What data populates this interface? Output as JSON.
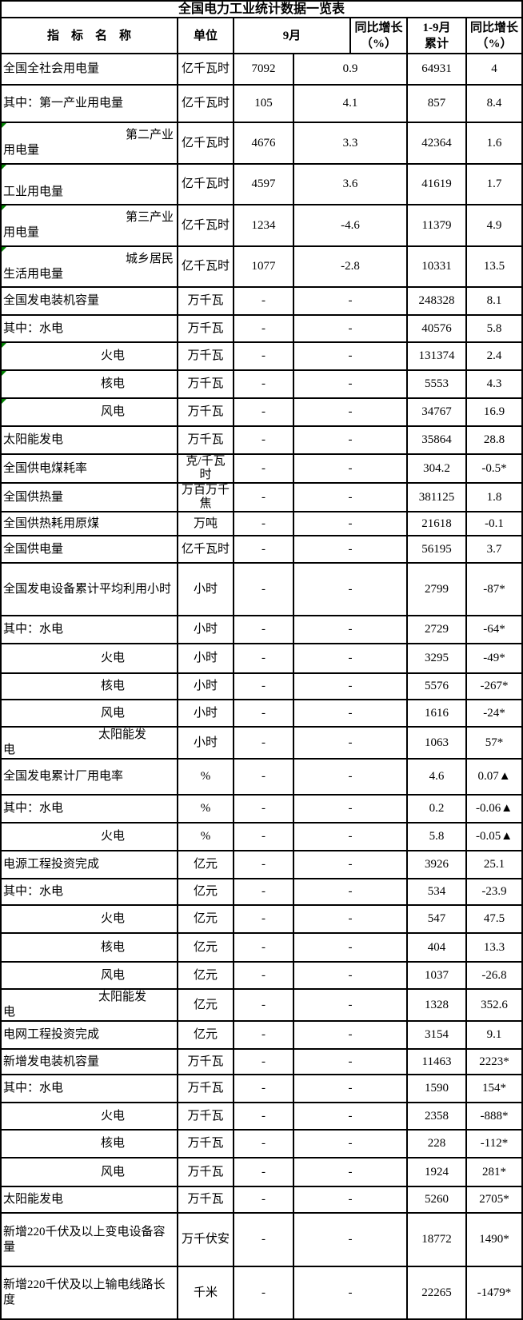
{
  "table": {
    "title": "全国电力工业统计数据一览表",
    "marker_color": "#008000",
    "border_color": "#000000",
    "background_color": "#ffffff",
    "header": {
      "indicator": "指　标　名　称",
      "unit": "单位",
      "september": "9月",
      "yoy_september": [
        "同比增长",
        "（%）"
      ],
      "cumulative": [
        "1-9月",
        "累计"
      ],
      "yoy_cumulative": [
        "同比增长",
        "（%）"
      ]
    },
    "rows": [
      {
        "name": [
          "全国全社会用电量"
        ],
        "style": "plain",
        "marker": false,
        "unit": [
          "亿千瓦时"
        ],
        "sep": "7092",
        "sep_yoy": "0.9",
        "cum": "64931",
        "cum_yoy": "4"
      },
      {
        "name": [
          "其中：第一产业用电量"
        ],
        "style": "plain",
        "marker": false,
        "unit": [
          "亿千瓦时"
        ],
        "sep": "105",
        "sep_yoy": "4.1",
        "cum": "857",
        "cum_yoy": "8.4"
      },
      {
        "name": [
          "第二产业",
          "用电量"
        ],
        "style": "wrap",
        "marker": true,
        "unit": [
          "亿千瓦时"
        ],
        "sep": "4676",
        "sep_yoy": "3.3",
        "cum": "42364",
        "cum_yoy": "1.6"
      },
      {
        "name": [
          "",
          "工业用电量"
        ],
        "style": "wrap",
        "marker": true,
        "unit": [
          "亿千瓦时"
        ],
        "sep": "4597",
        "sep_yoy": "3.6",
        "cum": "41619",
        "cum_yoy": "1.7"
      },
      {
        "name": [
          "第三产业",
          "用电量"
        ],
        "style": "wrap",
        "marker": true,
        "unit": [
          "亿千瓦时"
        ],
        "sep": "1234",
        "sep_yoy": "-4.6",
        "cum": "11379",
        "cum_yoy": "4.9"
      },
      {
        "name": [
          "城乡居民",
          "生活用电量"
        ],
        "style": "wrap",
        "marker": true,
        "unit": [
          "亿千瓦时"
        ],
        "sep": "1077",
        "sep_yoy": "-2.8",
        "cum": "10331",
        "cum_yoy": "13.5"
      },
      {
        "name": [
          "全国发电装机容量"
        ],
        "style": "plain",
        "marker": false,
        "unit": [
          "万千瓦"
        ],
        "sep": "-",
        "sep_yoy": "-",
        "cum": "248328",
        "cum_yoy": "8.1"
      },
      {
        "name": [
          "其中：水电"
        ],
        "style": "plain",
        "marker": false,
        "unit": [
          "万千瓦"
        ],
        "sep": "-",
        "sep_yoy": "-",
        "cum": "40576",
        "cum_yoy": "5.8"
      },
      {
        "name": [
          "火电"
        ],
        "style": "deep",
        "marker": true,
        "unit": [
          "万千瓦"
        ],
        "sep": "-",
        "sep_yoy": "-",
        "cum": "131374",
        "cum_yoy": "2.4"
      },
      {
        "name": [
          "核电"
        ],
        "style": "deep",
        "marker": true,
        "unit": [
          "万千瓦"
        ],
        "sep": "-",
        "sep_yoy": "-",
        "cum": "5553",
        "cum_yoy": "4.3"
      },
      {
        "name": [
          "风电"
        ],
        "style": "deep",
        "marker": true,
        "unit": [
          "万千瓦"
        ],
        "sep": "-",
        "sep_yoy": "-",
        "cum": "34767",
        "cum_yoy": "16.9"
      },
      {
        "name": [
          "太阳能发电"
        ],
        "style": "plain",
        "marker": false,
        "unit": [
          "万千瓦"
        ],
        "sep": "-",
        "sep_yoy": "-",
        "cum": "35864",
        "cum_yoy": "28.8"
      },
      {
        "name": [
          "全国供电煤耗率"
        ],
        "style": "plain",
        "marker": false,
        "unit": [
          "克/千瓦",
          "时"
        ],
        "sep": "-",
        "sep_yoy": "-",
        "cum": "304.2",
        "cum_yoy": "-0.5*"
      },
      {
        "name": [
          "全国供热量"
        ],
        "style": "plain",
        "marker": false,
        "unit": [
          "万百万千",
          "焦"
        ],
        "sep": "-",
        "sep_yoy": "-",
        "cum": "381125",
        "cum_yoy": "1.8"
      },
      {
        "name": [
          "全国供热耗用原煤"
        ],
        "style": "plain",
        "marker": false,
        "unit": [
          "万吨"
        ],
        "sep": "-",
        "sep_yoy": "-",
        "cum": "21618",
        "cum_yoy": "-0.1"
      },
      {
        "name": [
          "全国供电量"
        ],
        "style": "plain",
        "marker": false,
        "unit": [
          "亿千瓦时"
        ],
        "sep": "-",
        "sep_yoy": "-",
        "cum": "56195",
        "cum_yoy": "3.7"
      },
      {
        "name": [
          "全国发电设备累计平均利用小时"
        ],
        "style": "plain",
        "marker": false,
        "unit": [
          "小时"
        ],
        "sep": "-",
        "sep_yoy": "-",
        "cum": "2799",
        "cum_yoy": "-87*"
      },
      {
        "name": [
          "其中：水电"
        ],
        "style": "plain",
        "marker": false,
        "unit": [
          "小时"
        ],
        "sep": "-",
        "sep_yoy": "-",
        "cum": "2729",
        "cum_yoy": "-64*"
      },
      {
        "name": [
          "火电"
        ],
        "style": "deep",
        "marker": false,
        "unit": [
          "小时"
        ],
        "sep": "-",
        "sep_yoy": "-",
        "cum": "3295",
        "cum_yoy": "-49*"
      },
      {
        "name": [
          "核电"
        ],
        "style": "deep",
        "marker": false,
        "unit": [
          "小时"
        ],
        "sep": "-",
        "sep_yoy": "-",
        "cum": "5576",
        "cum_yoy": "-267*"
      },
      {
        "name": [
          "风电"
        ],
        "style": "deep",
        "marker": false,
        "unit": [
          "小时"
        ],
        "sep": "-",
        "sep_yoy": "-",
        "cum": "1616",
        "cum_yoy": "-24*"
      },
      {
        "name": [
          "太阳能发",
          "电"
        ],
        "style": "wrap2",
        "marker": false,
        "unit": [
          "小时"
        ],
        "sep": "-",
        "sep_yoy": "-",
        "cum": "1063",
        "cum_yoy": "57*"
      },
      {
        "name": [
          "全国发电累计厂用电率"
        ],
        "style": "plain",
        "marker": false,
        "unit": [
          "%"
        ],
        "sep": "-",
        "sep_yoy": "-",
        "cum": "4.6",
        "cum_yoy": "0.07▲"
      },
      {
        "name": [
          "其中：水电"
        ],
        "style": "plain",
        "marker": false,
        "unit": [
          "%"
        ],
        "sep": "-",
        "sep_yoy": "-",
        "cum": "0.2",
        "cum_yoy": "-0.06▲"
      },
      {
        "name": [
          "火电"
        ],
        "style": "deep",
        "marker": false,
        "unit": [
          "%"
        ],
        "sep": "-",
        "sep_yoy": "-",
        "cum": "5.8",
        "cum_yoy": "-0.05▲"
      },
      {
        "name": [
          "电源工程投资完成"
        ],
        "style": "plain",
        "marker": false,
        "unit": [
          "亿元"
        ],
        "sep": "-",
        "sep_yoy": "-",
        "cum": "3926",
        "cum_yoy": "25.1"
      },
      {
        "name": [
          "其中：水电"
        ],
        "style": "plain",
        "marker": false,
        "unit": [
          "亿元"
        ],
        "sep": "-",
        "sep_yoy": "-",
        "cum": "534",
        "cum_yoy": "-23.9"
      },
      {
        "name": [
          "火电"
        ],
        "style": "deep",
        "marker": false,
        "unit": [
          "亿元"
        ],
        "sep": "-",
        "sep_yoy": "-",
        "cum": "547",
        "cum_yoy": "47.5"
      },
      {
        "name": [
          "核电"
        ],
        "style": "deep",
        "marker": false,
        "unit": [
          "亿元"
        ],
        "sep": "-",
        "sep_yoy": "-",
        "cum": "404",
        "cum_yoy": "13.3"
      },
      {
        "name": [
          "风电"
        ],
        "style": "deep",
        "marker": false,
        "unit": [
          "亿元"
        ],
        "sep": "-",
        "sep_yoy": "-",
        "cum": "1037",
        "cum_yoy": "-26.8"
      },
      {
        "name": [
          "太阳能发",
          "电"
        ],
        "style": "wrap2",
        "marker": false,
        "unit": [
          "亿元"
        ],
        "sep": "-",
        "sep_yoy": "-",
        "cum": "1328",
        "cum_yoy": "352.6"
      },
      {
        "name": [
          "电网工程投资完成"
        ],
        "style": "plain",
        "marker": false,
        "unit": [
          "亿元"
        ],
        "sep": "-",
        "sep_yoy": "-",
        "cum": "3154",
        "cum_yoy": "9.1"
      },
      {
        "name": [
          "新增发电装机容量"
        ],
        "style": "plain",
        "marker": false,
        "unit": [
          "万千瓦"
        ],
        "sep": "-",
        "sep_yoy": "-",
        "cum": "11463",
        "cum_yoy": "2223*"
      },
      {
        "name": [
          "其中：水电"
        ],
        "style": "plain",
        "marker": false,
        "unit": [
          "万千瓦"
        ],
        "sep": "-",
        "sep_yoy": "-",
        "cum": "1590",
        "cum_yoy": "154*"
      },
      {
        "name": [
          "火电"
        ],
        "style": "deep",
        "marker": false,
        "unit": [
          "万千瓦"
        ],
        "sep": "-",
        "sep_yoy": "-",
        "cum": "2358",
        "cum_yoy": "-888*"
      },
      {
        "name": [
          "核电"
        ],
        "style": "deep",
        "marker": false,
        "unit": [
          "万千瓦"
        ],
        "sep": "-",
        "sep_yoy": "-",
        "cum": "228",
        "cum_yoy": "-112*"
      },
      {
        "name": [
          "风电"
        ],
        "style": "deep",
        "marker": false,
        "unit": [
          "万千瓦"
        ],
        "sep": "-",
        "sep_yoy": "-",
        "cum": "1924",
        "cum_yoy": "281*"
      },
      {
        "name": [
          "太阳能发电"
        ],
        "style": "plain",
        "marker": false,
        "unit": [
          "万千瓦"
        ],
        "sep": "-",
        "sep_yoy": "-",
        "cum": "5260",
        "cum_yoy": "2705*"
      },
      {
        "name": [
          "新增220千伏及以上变电设备容",
          "量"
        ],
        "style": "long",
        "marker": false,
        "unit": [
          "万千伏安"
        ],
        "sep": "-",
        "sep_yoy": "-",
        "cum": "18772",
        "cum_yoy": "1490*"
      },
      {
        "name": [
          "新增220千伏及以上输电线路长",
          "度"
        ],
        "style": "long",
        "marker": false,
        "unit": [
          "千米"
        ],
        "sep": "-",
        "sep_yoy": "-",
        "cum": "22265",
        "cum_yoy": "-1479*"
      }
    ]
  },
  "chart_data": {
    "type": "table",
    "title": "全国电力工业统计数据一览表",
    "columns": [
      "指标名称",
      "单位",
      "9月",
      "9月同比增长（%）",
      "1-9月累计",
      "1-9月同比增长（%）"
    ],
    "rows": [
      [
        "全国全社会用电量",
        "亿千瓦时",
        "7092",
        "0.9",
        "64931",
        "4"
      ],
      [
        "其中：第一产业用电量",
        "亿千瓦时",
        "105",
        "4.1",
        "857",
        "8.4"
      ],
      [
        "第二产业用电量",
        "亿千瓦时",
        "4676",
        "3.3",
        "42364",
        "1.6"
      ],
      [
        "工业用电量",
        "亿千瓦时",
        "4597",
        "3.6",
        "41619",
        "1.7"
      ],
      [
        "第三产业用电量",
        "亿千瓦时",
        "1234",
        "-4.6",
        "11379",
        "4.9"
      ],
      [
        "城乡居民生活用电量",
        "亿千瓦时",
        "1077",
        "-2.8",
        "10331",
        "13.5"
      ],
      [
        "全国发电装机容量",
        "万千瓦",
        "-",
        "-",
        "248328",
        "8.1"
      ],
      [
        "其中：水电",
        "万千瓦",
        "-",
        "-",
        "40576",
        "5.8"
      ],
      [
        "火电",
        "万千瓦",
        "-",
        "-",
        "131374",
        "2.4"
      ],
      [
        "核电",
        "万千瓦",
        "-",
        "-",
        "5553",
        "4.3"
      ],
      [
        "风电",
        "万千瓦",
        "-",
        "-",
        "34767",
        "16.9"
      ],
      [
        "太阳能发电",
        "万千瓦",
        "-",
        "-",
        "35864",
        "28.8"
      ],
      [
        "全国供电煤耗率",
        "克/千瓦时",
        "-",
        "-",
        "304.2",
        "-0.5*"
      ],
      [
        "全国供热量",
        "万百万千焦",
        "-",
        "-",
        "381125",
        "1.8"
      ],
      [
        "全国供热耗用原煤",
        "万吨",
        "-",
        "-",
        "21618",
        "-0.1"
      ],
      [
        "全国供电量",
        "亿千瓦时",
        "-",
        "-",
        "56195",
        "3.7"
      ],
      [
        "全国发电设备累计平均利用小时",
        "小时",
        "-",
        "-",
        "2799",
        "-87*"
      ],
      [
        "其中：水电",
        "小时",
        "-",
        "-",
        "2729",
        "-64*"
      ],
      [
        "火电",
        "小时",
        "-",
        "-",
        "3295",
        "-49*"
      ],
      [
        "核电",
        "小时",
        "-",
        "-",
        "5576",
        "-267*"
      ],
      [
        "风电",
        "小时",
        "-",
        "-",
        "1616",
        "-24*"
      ],
      [
        "太阳能发电",
        "小时",
        "-",
        "-",
        "1063",
        "57*"
      ],
      [
        "全国发电累计厂用电率",
        "%",
        "-",
        "-",
        "4.6",
        "0.07▲"
      ],
      [
        "其中：水电",
        "%",
        "-",
        "-",
        "0.2",
        "-0.06▲"
      ],
      [
        "火电",
        "%",
        "-",
        "-",
        "5.8",
        "-0.05▲"
      ],
      [
        "电源工程投资完成",
        "亿元",
        "-",
        "-",
        "3926",
        "25.1"
      ],
      [
        "其中：水电",
        "亿元",
        "-",
        "-",
        "534",
        "-23.9"
      ],
      [
        "火电",
        "亿元",
        "-",
        "-",
        "547",
        "47.5"
      ],
      [
        "核电",
        "亿元",
        "-",
        "-",
        "404",
        "13.3"
      ],
      [
        "风电",
        "亿元",
        "-",
        "-",
        "1037",
        "-26.8"
      ],
      [
        "太阳能发电",
        "亿元",
        "-",
        "-",
        "1328",
        "352.6"
      ],
      [
        "电网工程投资完成",
        "亿元",
        "-",
        "-",
        "3154",
        "9.1"
      ],
      [
        "新增发电装机容量",
        "万千瓦",
        "-",
        "-",
        "11463",
        "2223*"
      ],
      [
        "其中：水电",
        "万千瓦",
        "-",
        "-",
        "1590",
        "154*"
      ],
      [
        "火电",
        "万千瓦",
        "-",
        "-",
        "2358",
        "-888*"
      ],
      [
        "核电",
        "万千瓦",
        "-",
        "-",
        "228",
        "-112*"
      ],
      [
        "风电",
        "万千瓦",
        "-",
        "-",
        "1924",
        "281*"
      ],
      [
        "太阳能发电",
        "万千瓦",
        "-",
        "-",
        "5260",
        "2705*"
      ],
      [
        "新增220千伏及以上变电设备容量",
        "万千伏安",
        "-",
        "-",
        "18772",
        "1490*"
      ],
      [
        "新增220千伏及以上输电线路长度",
        "千米",
        "-",
        "-",
        "22265",
        "-1479*"
      ]
    ]
  }
}
